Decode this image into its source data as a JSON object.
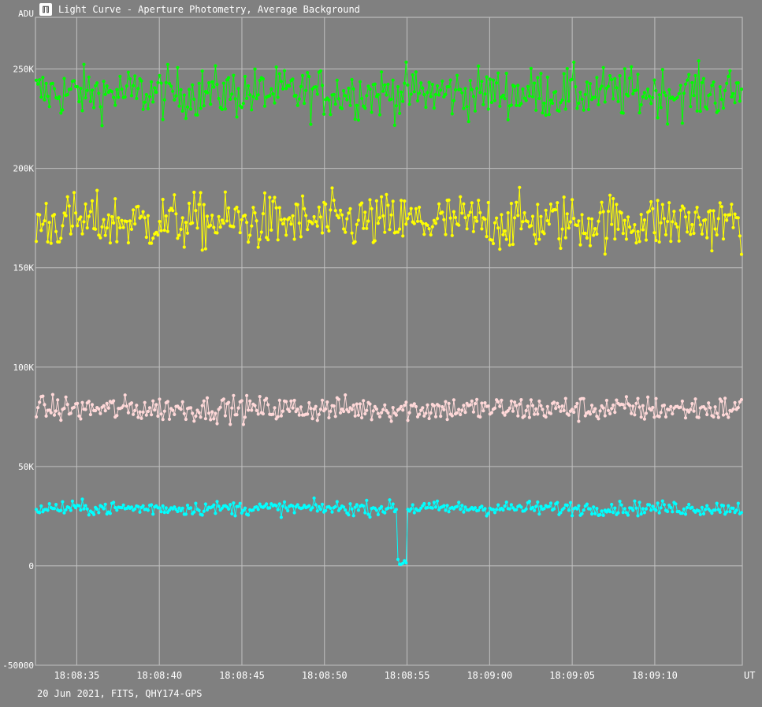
{
  "window": {
    "title": "Light Curve - Aperture Photometry, Average Background",
    "footer": "20 Jun 2021, FITS, QHY174-GPS",
    "icon": "light-curve-app-icon"
  },
  "chart_data": {
    "type": "line",
    "title": "Light Curve - Aperture Photometry, Average Background",
    "ylabel": "ADU",
    "xlabel": "UT",
    "ylim": [
      -50000,
      276000
    ],
    "yticks": [
      -50000,
      0,
      50000,
      100000,
      150000,
      200000,
      250000
    ],
    "ytick_labels": [
      "-50000",
      "0",
      "50K",
      "100K",
      "150K",
      "200K",
      "250K"
    ],
    "xlim": [
      "18:08:32.5",
      "18:09:15.3"
    ],
    "xticks": [
      "18:08:35",
      "18:08:40",
      "18:08:45",
      "18:08:50",
      "18:08:55",
      "18:09:00",
      "18:09:05",
      "18:09:10"
    ],
    "grid": true,
    "legend": "none",
    "series": [
      {
        "color": "#00ff00",
        "mean": 238000,
        "noise": 9000,
        "points": 430
      },
      {
        "color": "#ffff00",
        "mean": 173000,
        "noise": 10000,
        "points": 430
      },
      {
        "color": "#ffd8d8",
        "mean": 79000,
        "noise": 4500,
        "points": 430
      },
      {
        "color": "#00ffff",
        "mean": 29000,
        "noise": 2500,
        "points": 430,
        "events": [
          {
            "start": "18:08:54.4",
            "end": "18:08:55.0",
            "level": 2000
          }
        ]
      }
    ]
  }
}
